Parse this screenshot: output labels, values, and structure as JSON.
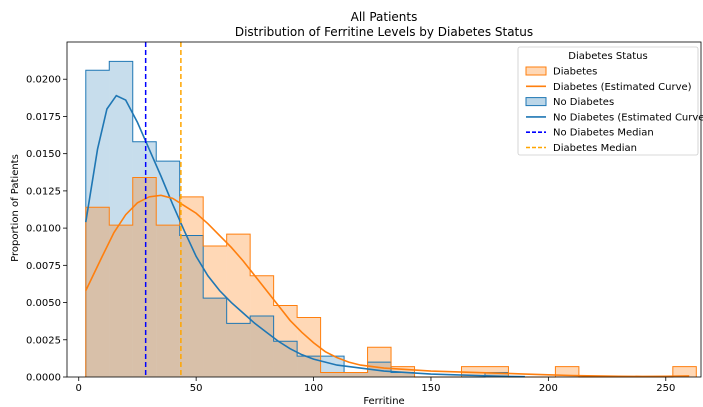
{
  "chart_data": {
    "type": "histogram",
    "title_line1": "All Patients",
    "title_line2": "Distribution of Ferritine Levels by Diabetes Status",
    "xlabel": "Ferritine",
    "ylabel": "Proportion of Patients",
    "xlim": [
      -5,
      265
    ],
    "ylim": [
      0,
      0.0225
    ],
    "x_ticks": [
      0,
      50,
      100,
      150,
      200,
      250
    ],
    "y_ticks": [
      0.0,
      0.0025,
      0.005,
      0.0075,
      0.01,
      0.0125,
      0.015,
      0.0175,
      0.02
    ],
    "y_tick_labels": [
      "0.0000",
      "0.0025",
      "0.0050",
      "0.0075",
      "0.0100",
      "0.0125",
      "0.0150",
      "0.0175",
      "0.0200"
    ],
    "grid": false,
    "legend_title": "Diabetes Status",
    "legend_position": "top-right",
    "legend_entries": [
      {
        "label": "Diabetes",
        "kind": "patch",
        "color": "#ff7f0e"
      },
      {
        "label": "Diabetes (Estimated Curve)",
        "kind": "line",
        "color": "#ff7f0e"
      },
      {
        "label": "No Diabetes",
        "kind": "patch",
        "color": "#1f77b4"
      },
      {
        "label": "No Diabetes (Estimated Curve)",
        "kind": "line",
        "color": "#1f77b4"
      },
      {
        "label": "No Diabetes Median",
        "kind": "dashed",
        "color": "#0000ff"
      },
      {
        "label": "Diabetes Median",
        "kind": "dashed",
        "color": "#ffa500"
      }
    ],
    "series": [
      {
        "name": "No Diabetes",
        "color": "#1f77b4",
        "bin_edges": [
          3,
          13,
          23,
          33,
          43,
          53,
          63,
          73,
          83,
          93,
          103,
          113,
          123,
          133,
          143,
          153,
          163,
          173,
          183
        ],
        "values": [
          0.0206,
          0.0212,
          0.0158,
          0.0145,
          0.0095,
          0.0053,
          0.0036,
          0.0041,
          0.0024,
          0.0014,
          0.0014,
          0.0003,
          0.001,
          0.0003,
          0.0,
          0.0,
          0.0,
          0.0003
        ],
        "curve_x": [
          3,
          8,
          12,
          16,
          20,
          25,
          30,
          35,
          40,
          45,
          50,
          55,
          60,
          65,
          70,
          75,
          80,
          85,
          90,
          95,
          100,
          110,
          120,
          130,
          140,
          150,
          160,
          170,
          180,
          190
        ],
        "curve_y": [
          0.0104,
          0.0153,
          0.018,
          0.0189,
          0.0186,
          0.0171,
          0.0153,
          0.0135,
          0.0116,
          0.0098,
          0.0081,
          0.0068,
          0.0058,
          0.005,
          0.0043,
          0.0036,
          0.003,
          0.0024,
          0.0019,
          0.0015,
          0.0012,
          0.0008,
          0.0006,
          0.0004,
          0.0003,
          0.0002,
          0.00015,
          0.0001,
          5e-05,
          2e-05
        ]
      },
      {
        "name": "Diabetes",
        "color": "#ff7f0e",
        "bin_edges": [
          3,
          13,
          23,
          33,
          43,
          53,
          63,
          73,
          83,
          93,
          103,
          113,
          123,
          133,
          143,
          153,
          163,
          173,
          183,
          193,
          203,
          213,
          223,
          233,
          243,
          253,
          263
        ],
        "values": [
          0.0114,
          0.0102,
          0.0134,
          0.0102,
          0.0121,
          0.0088,
          0.0096,
          0.0068,
          0.0048,
          0.004,
          0.0003,
          0.0003,
          0.002,
          0.0007,
          0.0,
          0.0,
          0.0007,
          0.0007,
          0.0,
          0.0,
          0.0007,
          0.0,
          0.0,
          0.0,
          0.0,
          0.0007
        ],
        "curve_x": [
          3,
          10,
          15,
          20,
          25,
          30,
          35,
          40,
          45,
          50,
          55,
          60,
          65,
          70,
          75,
          80,
          85,
          90,
          95,
          100,
          105,
          110,
          115,
          120,
          130,
          140,
          150,
          160,
          170,
          180,
          190,
          200,
          210,
          220,
          230,
          240,
          250,
          260
        ],
        "curve_y": [
          0.0058,
          0.0081,
          0.0097,
          0.0109,
          0.0117,
          0.0121,
          0.0122,
          0.012,
          0.0115,
          0.011,
          0.0103,
          0.0095,
          0.0087,
          0.0078,
          0.0068,
          0.0058,
          0.0048,
          0.0038,
          0.003,
          0.0023,
          0.0017,
          0.0013,
          0.001,
          0.0008,
          0.0006,
          0.0005,
          0.0004,
          0.00035,
          0.0003,
          0.00025,
          0.0002,
          0.00015,
          0.0001,
          7e-05,
          5e-05,
          4e-05,
          5e-05,
          7e-05
        ]
      }
    ],
    "medians": [
      {
        "name": "No Diabetes Median",
        "x": 28.5,
        "color": "#0000ff"
      },
      {
        "name": "Diabetes Median",
        "x": 43.5,
        "color": "#ffa500"
      }
    ]
  }
}
